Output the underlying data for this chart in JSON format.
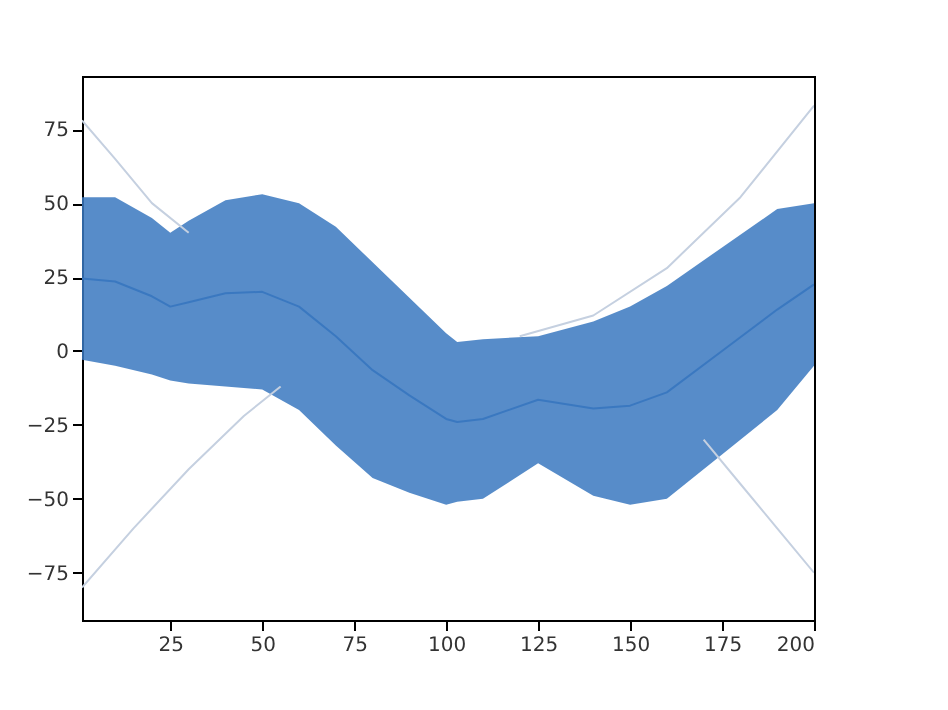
{
  "chart_data": {
    "type": "line",
    "xlim": [
      1,
      200
    ],
    "ylim": [
      -91,
      93
    ],
    "xticks": [
      25,
      50,
      75,
      100,
      125,
      150,
      175,
      200
    ],
    "yticks": [
      -75,
      -50,
      -25,
      0,
      25,
      50,
      75
    ],
    "grid": false,
    "legend": false,
    "series": [
      {
        "color": "#3a78c0",
        "x": [
          1,
          10,
          20,
          25,
          30,
          40,
          50,
          60,
          70,
          80,
          90,
          100,
          103,
          110,
          125,
          140,
          150,
          160,
          175,
          190,
          200
        ],
        "values": [
          24.5,
          23.5,
          18.5,
          15,
          16.5,
          19.5,
          20,
          15,
          5,
          -6.5,
          -15,
          -23,
          -24,
          -23,
          -16.5,
          -19.5,
          -18.5,
          -14,
          0,
          14,
          22.5
        ],
        "upper": [
          52,
          52,
          45,
          40,
          44,
          51,
          53,
          50,
          42,
          30,
          18,
          6,
          3,
          4,
          5,
          10,
          15,
          22,
          35,
          48,
          50
        ],
        "lower": [
          -3,
          -5,
          -8,
          -10,
          -11,
          -12,
          -13,
          -20,
          -32,
          -43,
          -48,
          -52,
          -51,
          -50,
          -38,
          -49,
          -52,
          -50,
          -35,
          -20,
          -5
        ]
      },
      {
        "color": "#c5d0e0",
        "x": [
          1,
          10,
          20,
          30
        ],
        "values": [
          78,
          65,
          50,
          40
        ]
      },
      {
        "color": "#c5d0e0",
        "x": [
          1,
          15,
          30,
          45,
          55
        ],
        "values": [
          -80,
          -60,
          -40,
          -22,
          -12
        ]
      },
      {
        "color": "#c5d0e0",
        "x": [
          120,
          140,
          160,
          180,
          200
        ],
        "values": [
          5,
          12,
          28,
          52,
          83
        ]
      },
      {
        "color": "#c5d0e0",
        "x": [
          170,
          180,
          190,
          200
        ],
        "values": [
          -30,
          -45,
          -60,
          -75
        ]
      }
    ]
  }
}
